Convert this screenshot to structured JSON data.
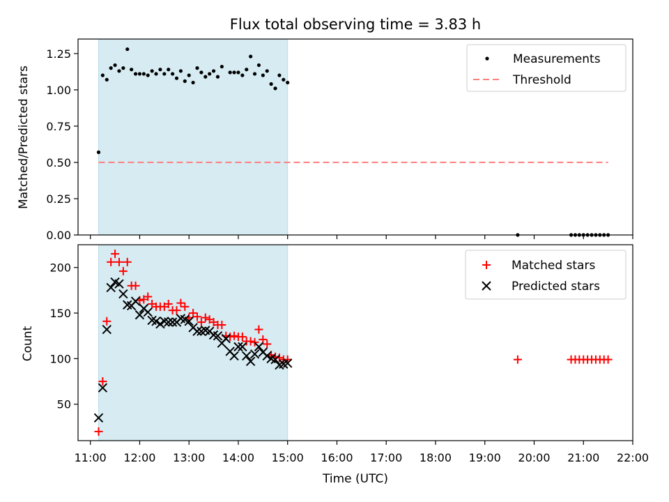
{
  "title": "Flux total observing time = 3.83 h",
  "colors": {
    "span": "#add8e6",
    "measurements": "#000000",
    "threshold": "#ff7f7f",
    "matched": "#ff0000",
    "predicted": "#000000"
  },
  "chart_data": [
    {
      "type": "scatter",
      "ylabel": "Matched/Predicted stars",
      "ylim": [
        0,
        1.35
      ],
      "yticks": [
        0.0,
        0.25,
        0.5,
        0.75,
        1.0,
        1.25
      ],
      "yticklabels": [
        "0.00",
        "0.25",
        "0.50",
        "0.75",
        "1.00",
        "1.25"
      ],
      "legend": {
        "position": "top-right",
        "entries": [
          "Measurements",
          "Threshold"
        ]
      },
      "shaded_span": [
        "11:10",
        "15:00"
      ],
      "threshold": {
        "value": 0.5,
        "x": [
          "11:10",
          "21:30"
        ]
      },
      "series": [
        {
          "name": "Measurements",
          "points": [
            [
              "11:10",
              0.57
            ],
            [
              "11:15",
              1.1
            ],
            [
              "11:20",
              1.07
            ],
            [
              "11:25",
              1.15
            ],
            [
              "11:30",
              1.17
            ],
            [
              "11:35",
              1.13
            ],
            [
              "11:40",
              1.15
            ],
            [
              "11:45",
              1.28
            ],
            [
              "11:50",
              1.14
            ],
            [
              "11:55",
              1.11
            ],
            [
              "12:00",
              1.11
            ],
            [
              "12:05",
              1.11
            ],
            [
              "12:10",
              1.1
            ],
            [
              "12:15",
              1.13
            ],
            [
              "12:20",
              1.11
            ],
            [
              "12:25",
              1.14
            ],
            [
              "12:30",
              1.11
            ],
            [
              "12:35",
              1.14
            ],
            [
              "12:40",
              1.11
            ],
            [
              "12:45",
              1.08
            ],
            [
              "12:50",
              1.13
            ],
            [
              "12:55",
              1.06
            ],
            [
              "13:00",
              1.1
            ],
            [
              "13:05",
              1.05
            ],
            [
              "13:10",
              1.15
            ],
            [
              "13:15",
              1.12
            ],
            [
              "13:20",
              1.09
            ],
            [
              "13:25",
              1.11
            ],
            [
              "13:30",
              1.13
            ],
            [
              "13:35",
              1.09
            ],
            [
              "13:40",
              1.16
            ],
            [
              "13:50",
              1.12
            ],
            [
              "13:55",
              1.12
            ],
            [
              "14:00",
              1.12
            ],
            [
              "14:05",
              1.1
            ],
            [
              "14:10",
              1.14
            ],
            [
              "14:15",
              1.23
            ],
            [
              "14:20",
              1.11
            ],
            [
              "14:25",
              1.17
            ],
            [
              "14:30",
              1.1
            ],
            [
              "14:35",
              1.13
            ],
            [
              "14:40",
              1.04
            ],
            [
              "14:45",
              1.01
            ],
            [
              "14:50",
              1.1
            ],
            [
              "14:55",
              1.07
            ],
            [
              "15:00",
              1.05
            ],
            [
              "19:40",
              0.0
            ],
            [
              "20:45",
              0.0
            ],
            [
              "20:50",
              0.0
            ],
            [
              "20:55",
              0.0
            ],
            [
              "21:00",
              0.0
            ],
            [
              "21:05",
              0.0
            ],
            [
              "21:10",
              0.0
            ],
            [
              "21:15",
              0.0
            ],
            [
              "21:20",
              0.0
            ],
            [
              "21:25",
              0.0
            ],
            [
              "21:30",
              0.0
            ]
          ]
        }
      ]
    },
    {
      "type": "scatter",
      "xlabel": "Time (UTC)",
      "ylabel": "Count",
      "xlim": [
        "10:45",
        "22:00"
      ],
      "xticks": [
        "11:00",
        "12:00",
        "13:00",
        "14:00",
        "15:00",
        "16:00",
        "17:00",
        "18:00",
        "19:00",
        "20:00",
        "21:00",
        "22:00"
      ],
      "ylim": [
        10,
        225
      ],
      "yticks": [
        50,
        100,
        150,
        200
      ],
      "legend": {
        "position": "top-right",
        "entries": [
          "Matched stars",
          "Predicted stars"
        ]
      },
      "shaded_span": [
        "11:10",
        "15:00"
      ],
      "series": [
        {
          "name": "Matched stars",
          "marker": "+",
          "points": [
            [
              "11:10",
              20
            ],
            [
              "11:15",
              75
            ],
            [
              "11:20",
              141
            ],
            [
              "11:25",
              206
            ],
            [
              "11:30",
              215
            ],
            [
              "11:35",
              206
            ],
            [
              "11:40",
              196
            ],
            [
              "11:45",
              206
            ],
            [
              "11:50",
              180
            ],
            [
              "11:55",
              180
            ],
            [
              "12:00",
              164
            ],
            [
              "12:05",
              165
            ],
            [
              "12:10",
              168
            ],
            [
              "12:15",
              160
            ],
            [
              "12:20",
              157
            ],
            [
              "12:25",
              157
            ],
            [
              "12:30",
              157
            ],
            [
              "12:35",
              160
            ],
            [
              "12:40",
              153
            ],
            [
              "12:45",
              153
            ],
            [
              "12:50",
              161
            ],
            [
              "12:55",
              157
            ],
            [
              "13:00",
              145
            ],
            [
              "13:05",
              150
            ],
            [
              "13:10",
              146
            ],
            [
              "13:15",
              140
            ],
            [
              "13:20",
              145
            ],
            [
              "13:25",
              143
            ],
            [
              "13:30",
              140
            ],
            [
              "13:35",
              137
            ],
            [
              "13:40",
              137
            ],
            [
              "13:45",
              125
            ],
            [
              "13:50",
              124
            ],
            [
              "13:55",
              125
            ],
            [
              "14:00",
              124
            ],
            [
              "14:05",
              124
            ],
            [
              "14:10",
              119
            ],
            [
              "14:15",
              119
            ],
            [
              "14:20",
              118
            ],
            [
              "14:25",
              132
            ],
            [
              "14:30",
              121
            ],
            [
              "14:35",
              116
            ],
            [
              "14:40",
              104
            ],
            [
              "14:45",
              102
            ],
            [
              "14:50",
              101
            ],
            [
              "14:55",
              99
            ],
            [
              "15:00",
              99
            ],
            [
              "19:40",
              99
            ],
            [
              "20:45",
              99
            ],
            [
              "20:50",
              99
            ],
            [
              "20:55",
              99
            ],
            [
              "21:00",
              99
            ],
            [
              "21:05",
              99
            ],
            [
              "21:10",
              99
            ],
            [
              "21:15",
              99
            ],
            [
              "21:20",
              99
            ],
            [
              "21:25",
              99
            ],
            [
              "21:30",
              99
            ]
          ]
        },
        {
          "name": "Predicted stars",
          "marker": "x",
          "points": [
            [
              "11:10",
              35
            ],
            [
              "11:15",
              68
            ],
            [
              "11:20",
              132
            ],
            [
              "11:25",
              178
            ],
            [
              "11:30",
              184
            ],
            [
              "11:35",
              182
            ],
            [
              "11:40",
              171
            ],
            [
              "11:45",
              159
            ],
            [
              "11:50",
              158
            ],
            [
              "11:55",
              163
            ],
            [
              "12:00",
              148
            ],
            [
              "12:05",
              155
            ],
            [
              "12:10",
              151
            ],
            [
              "12:15",
              142
            ],
            [
              "12:20",
              141
            ],
            [
              "12:25",
              138
            ],
            [
              "12:30",
              141
            ],
            [
              "12:35",
              140
            ],
            [
              "12:40",
              140
            ],
            [
              "12:45",
              140
            ],
            [
              "12:50",
              144
            ],
            [
              "12:55",
              143
            ],
            [
              "13:00",
              141
            ],
            [
              "13:05",
              134
            ],
            [
              "13:10",
              130
            ],
            [
              "13:15",
              130
            ],
            [
              "13:20",
              131
            ],
            [
              "13:25",
              130
            ],
            [
              "13:30",
              126
            ],
            [
              "13:35",
              125
            ],
            [
              "13:40",
              117
            ],
            [
              "13:45",
              122
            ],
            [
              "13:50",
              108
            ],
            [
              "13:55",
              103
            ],
            [
              "14:00",
              113
            ],
            [
              "14:05",
              113
            ],
            [
              "14:10",
              103
            ],
            [
              "14:15",
              97
            ],
            [
              "14:20",
              105
            ],
            [
              "14:25",
              113
            ],
            [
              "14:30",
              107
            ],
            [
              "14:35",
              103
            ],
            [
              "14:40",
              100
            ],
            [
              "14:45",
              99
            ],
            [
              "14:50",
              93
            ],
            [
              "14:55",
              94
            ],
            [
              "15:00",
              95
            ]
          ]
        }
      ]
    }
  ]
}
